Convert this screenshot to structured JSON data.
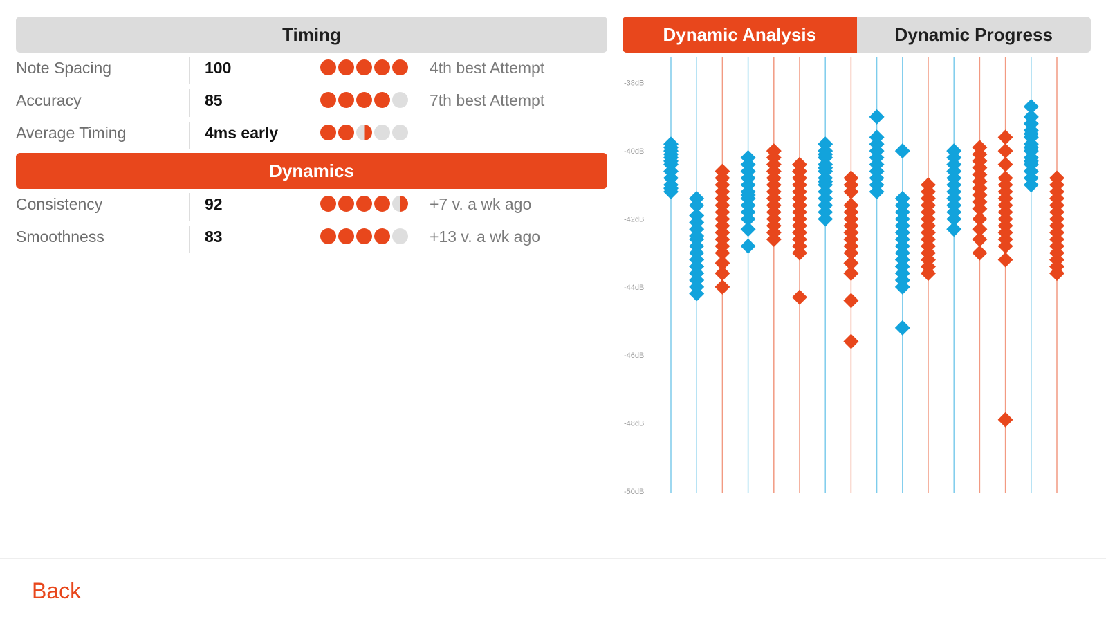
{
  "timing": {
    "header": "Timing",
    "rows": [
      {
        "label": "Note Spacing",
        "value": "100",
        "dots_filled": 5,
        "note": "4th best Attempt"
      },
      {
        "label": "Accuracy",
        "value": "85",
        "dots_filled": 4,
        "note": "7th best Attempt"
      },
      {
        "label": "Average Timing",
        "value": "4ms early",
        "dots_filled": 2.5,
        "note": ""
      }
    ]
  },
  "dynamics": {
    "header": "Dynamics",
    "rows": [
      {
        "label": "Consistency",
        "value": "92",
        "dots_filled": 4.5,
        "note": "+7 v. a wk ago"
      },
      {
        "label": "Smoothness",
        "value": "83",
        "dots_filled": 4,
        "note": "+13 v. a wk ago"
      }
    ]
  },
  "tabs": {
    "analysis": "Dynamic Analysis",
    "progress": "Dynamic Progress",
    "active": "analysis"
  },
  "colors": {
    "accent": "#e8471c",
    "blue": "#12a3dc",
    "tab_bg": "#dcdcdc",
    "dot_empty": "#dedede"
  },
  "footer": {
    "back_label": "Back"
  },
  "chart_data": {
    "type": "scatter",
    "title": "",
    "xlabel": "",
    "ylabel": "",
    "y_ticks": [
      "-38dB",
      "-40dB",
      "-42dB",
      "-44dB",
      "-46dB",
      "-48dB",
      "-50dB"
    ],
    "ylim": [
      -50,
      -37.6
    ],
    "series": [
      {
        "color": "blue",
        "x": [
          1,
          1,
          1,
          1,
          1,
          1,
          1,
          1,
          1,
          1,
          1,
          1
        ],
        "y": [
          -39.8,
          -39.9,
          -40,
          -40.1,
          -40.2,
          -40.3,
          -40.4,
          -40.6,
          -40.8,
          -41,
          -41.1,
          -41.2
        ]
      },
      {
        "color": "blue",
        "x": [
          2,
          2,
          2,
          2,
          2,
          2,
          2,
          2,
          2,
          2,
          2,
          2,
          2,
          2,
          2
        ],
        "y": [
          -41.4,
          -41.6,
          -41.9,
          -42.1,
          -42.3,
          -42.5,
          -42.6,
          -42.8,
          -43,
          -43.2,
          -43.4,
          -43.6,
          -43.8,
          -44,
          -44.2
        ]
      },
      {
        "color": "orange",
        "x": [
          3,
          3,
          3,
          3,
          3,
          3,
          3,
          3,
          3,
          3,
          3,
          3,
          3,
          3,
          3,
          3
        ],
        "y": [
          -40.6,
          -40.8,
          -41,
          -41.2,
          -41.4,
          -41.6,
          -41.8,
          -42,
          -42.2,
          -42.4,
          -42.6,
          -42.8,
          -43,
          -43.3,
          -43.6,
          -44
        ]
      },
      {
        "color": "blue",
        "x": [
          4,
          4,
          4,
          4,
          4,
          4,
          4,
          4,
          4,
          4,
          4,
          4,
          4
        ],
        "y": [
          -40.2,
          -40.4,
          -40.6,
          -40.8,
          -41,
          -41.2,
          -41.3,
          -41.4,
          -41.6,
          -41.8,
          -42,
          -42.3,
          -42.8
        ]
      },
      {
        "color": "orange",
        "x": [
          5,
          5,
          5,
          5,
          5,
          5,
          5,
          5,
          5,
          5,
          5,
          5,
          5,
          5
        ],
        "y": [
          -40,
          -40.2,
          -40.4,
          -40.6,
          -40.8,
          -41,
          -41.2,
          -41.4,
          -41.6,
          -41.8,
          -42,
          -42.2,
          -42.4,
          -42.6
        ]
      },
      {
        "color": "orange",
        "x": [
          6,
          6,
          6,
          6,
          6,
          6,
          6,
          6,
          6,
          6,
          6,
          6,
          6,
          6,
          6
        ],
        "y": [
          -40.4,
          -40.6,
          -40.8,
          -41,
          -41.2,
          -41.4,
          -41.6,
          -41.8,
          -42,
          -42.2,
          -42.4,
          -42.6,
          -42.8,
          -43,
          -44.3
        ]
      },
      {
        "color": "blue",
        "x": [
          7,
          7,
          7,
          7,
          7,
          7,
          7,
          7,
          7,
          7,
          7,
          7,
          7,
          7,
          7
        ],
        "y": [
          -39.8,
          -40,
          -40.2,
          -40.4,
          -40.6,
          -40.8,
          -41,
          -41.2,
          -41.4,
          -41.6,
          -41.8,
          -42,
          -40.1,
          -40.5,
          -40.9
        ]
      },
      {
        "color": "orange",
        "x": [
          8,
          8,
          8,
          8,
          8,
          8,
          8,
          8,
          8,
          8,
          8,
          8,
          8,
          8,
          8
        ],
        "y": [
          -40.8,
          -41,
          -41.2,
          -41.6,
          -41.8,
          -42,
          -42.2,
          -42.4,
          -42.6,
          -42.8,
          -43,
          -43.3,
          -43.6,
          -44.4,
          -45.6
        ]
      },
      {
        "color": "blue",
        "x": [
          9,
          9,
          9,
          9,
          9,
          9,
          9,
          9,
          9,
          9
        ],
        "y": [
          -39,
          -39.6,
          -39.8,
          -40,
          -40.2,
          -40.4,
          -40.6,
          -40.8,
          -41,
          -41.2
        ]
      },
      {
        "color": "blue",
        "x": [
          10,
          10,
          10,
          10,
          10,
          10,
          10,
          10,
          10,
          10,
          10,
          10,
          10,
          10,
          10,
          10
        ],
        "y": [
          -40,
          -41.4,
          -41.6,
          -41.8,
          -42,
          -42.2,
          -42.4,
          -42.6,
          -42.8,
          -43,
          -43.2,
          -43.4,
          -43.6,
          -43.8,
          -44,
          -45.2
        ]
      },
      {
        "color": "orange",
        "x": [
          11,
          11,
          11,
          11,
          11,
          11,
          11,
          11,
          11,
          11,
          11,
          11,
          11,
          11
        ],
        "y": [
          -41,
          -41.2,
          -41.4,
          -41.6,
          -41.8,
          -42,
          -42.2,
          -42.4,
          -42.6,
          -42.8,
          -43,
          -43.2,
          -43.4,
          -43.6
        ]
      },
      {
        "color": "blue",
        "x": [
          12,
          12,
          12,
          12,
          12,
          12,
          12,
          12,
          12,
          12,
          12,
          12
        ],
        "y": [
          -40,
          -40.2,
          -40.4,
          -40.6,
          -40.8,
          -41,
          -41.2,
          -41.4,
          -41.6,
          -41.8,
          -42,
          -42.3
        ]
      },
      {
        "color": "orange",
        "x": [
          13,
          13,
          13,
          13,
          13,
          13,
          13,
          13,
          13,
          13,
          13,
          13,
          13,
          13
        ],
        "y": [
          -39.9,
          -40.1,
          -40.3,
          -40.5,
          -40.7,
          -40.9,
          -41.1,
          -41.3,
          -41.5,
          -41.7,
          -42,
          -42.3,
          -42.6,
          -43
        ]
      },
      {
        "color": "orange",
        "x": [
          14,
          14,
          14,
          14,
          14,
          14,
          14,
          14,
          14,
          14,
          14,
          14,
          14,
          14,
          14,
          14
        ],
        "y": [
          -39.6,
          -40,
          -40.4,
          -40.8,
          -41,
          -41.2,
          -41.4,
          -41.6,
          -41.8,
          -42,
          -42.2,
          -42.4,
          -42.6,
          -42.8,
          -43.2,
          -47.9
        ]
      },
      {
        "color": "blue",
        "x": [
          15,
          15,
          15,
          15,
          15,
          15,
          15,
          15,
          15,
          15,
          15,
          15,
          15,
          15,
          15
        ],
        "y": [
          -38.7,
          -39,
          -39.2,
          -39.4,
          -39.6,
          -39.8,
          -40,
          -40.2,
          -40.4,
          -40.6,
          -40.8,
          -41,
          -39.5,
          -39.9,
          -40.3
        ]
      },
      {
        "color": "orange",
        "x": [
          16,
          16,
          16,
          16,
          16,
          16,
          16,
          16,
          16,
          16,
          16,
          16,
          16,
          16,
          16
        ],
        "y": [
          -40.8,
          -41,
          -41.2,
          -41.4,
          -41.6,
          -41.8,
          -42,
          -42.2,
          -42.4,
          -42.6,
          -42.8,
          -43,
          -43.2,
          -43.4,
          -43.6
        ]
      }
    ]
  }
}
